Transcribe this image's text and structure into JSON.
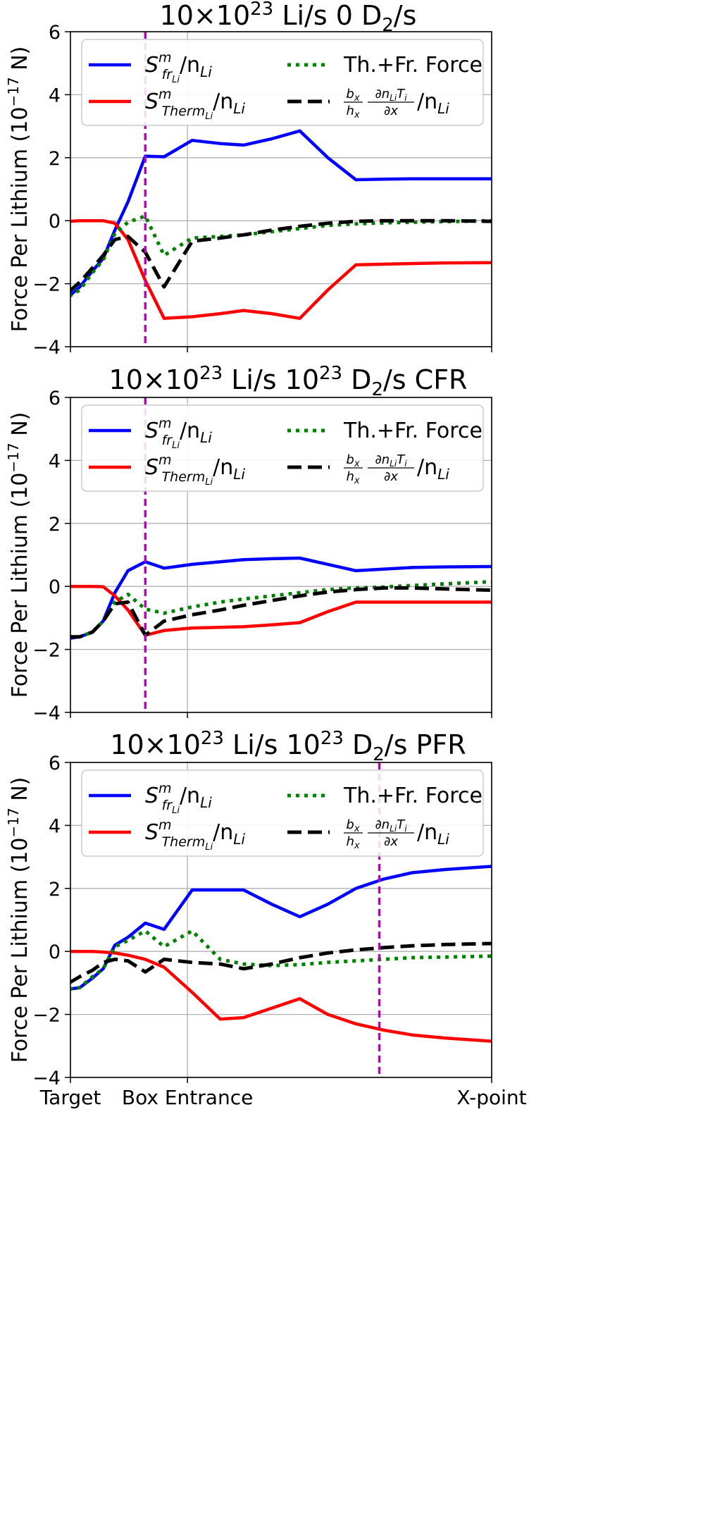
{
  "figure": {
    "ylabel_text": "Force Per Lithium (",
    "ylabel_unit_base": "10",
    "ylabel_unit_exp": "−17",
    "ylabel_unit_suffix": " N)",
    "xtick_labels": [
      "Target",
      "Box Entrance",
      "X-point"
    ]
  },
  "legend": {
    "fric_main": "S",
    "fric_sup": "m",
    "fric_sub": "fr",
    "fric_subsub": "Li",
    "fric_tail": "/n",
    "fric_tail_sub": "Li",
    "therm_main": "S",
    "therm_sup": "m",
    "therm_sub": "Therm",
    "therm_subsub": "Li",
    "therm_tail": "/n",
    "therm_tail_sub": "Li",
    "total_label": "Th.+Fr. Force",
    "grad_num": "b",
    "grad_num_sub": "x",
    "grad_den": "h",
    "grad_den_sub": "x",
    "grad_deriv_num": "∂n",
    "grad_deriv_num_sub": "Li",
    "grad_deriv_num_T": "T",
    "grad_deriv_num_T_sub": "i",
    "grad_deriv_den": "∂x",
    "grad_tail": "/n",
    "grad_tail_sub": "Li"
  },
  "colors": {
    "friction": "#0000ff",
    "thermal": "#ff0000",
    "total": "#008000",
    "gradient": "#000000",
    "xpoint_marker": "#bf00bf",
    "grid": "#b0b0b0"
  },
  "chart_data": [
    {
      "type": "line",
      "title_prefix": "10×10",
      "title_exp": "23",
      "title_mid": " Li/s 0 D",
      "title_sub": "2",
      "title_suffix": "/s",
      "ylim": [
        -4,
        6
      ],
      "yticks": [
        -4,
        -2,
        0,
        2,
        4,
        6
      ],
      "xlim": [
        0,
        9
      ],
      "xticks": [
        0,
        2.5,
        9
      ],
      "grid": true,
      "legend_position": "top",
      "marker_x": 1.6,
      "x": [
        -0.03,
        0.2,
        0.47,
        0.7,
        0.95,
        1.23,
        1.6,
        2.0,
        2.6,
        3.2,
        3.7,
        4.3,
        4.9,
        5.5,
        6.1,
        6.7,
        7.3,
        8.0,
        9.0
      ],
      "series": [
        {
          "key": "friction",
          "values": [
            -2.4,
            -2.1,
            -1.6,
            -1.2,
            -0.3,
            0.6,
            2.05,
            2.03,
            2.55,
            2.45,
            2.4,
            2.6,
            2.85,
            2.0,
            1.3,
            1.32,
            1.33,
            1.33,
            1.33
          ]
        },
        {
          "key": "thermal",
          "values": [
            -0.02,
            0.0,
            0.0,
            0.0,
            -0.08,
            -0.6,
            -1.9,
            -3.1,
            -3.05,
            -2.95,
            -2.85,
            -2.95,
            -3.1,
            -2.2,
            -1.4,
            -1.38,
            -1.36,
            -1.34,
            -1.33
          ]
        },
        {
          "key": "total",
          "values": [
            -2.4,
            -2.2,
            -1.65,
            -1.25,
            -0.4,
            -0.05,
            0.15,
            -1.1,
            -0.55,
            -0.5,
            -0.45,
            -0.35,
            -0.25,
            -0.15,
            -0.1,
            -0.07,
            -0.05,
            -0.03,
            0.0
          ]
        },
        {
          "key": "gradient",
          "values": [
            -2.25,
            -1.95,
            -1.5,
            -1.1,
            -0.6,
            -0.5,
            -1.0,
            -2.1,
            -0.65,
            -0.55,
            -0.45,
            -0.3,
            -0.18,
            -0.08,
            -0.02,
            0.0,
            0.0,
            0.0,
            -0.02
          ]
        }
      ]
    },
    {
      "type": "line",
      "title_prefix": "10×10",
      "title_exp": "23",
      "title_mid": " Li/s 10",
      "title_exp2": "23",
      "title_mid2": " D",
      "title_sub": "2",
      "title_suffix": "/s CFR",
      "ylim": [
        -4,
        6
      ],
      "yticks": [
        -4,
        -2,
        0,
        2,
        4,
        6
      ],
      "xlim": [
        0,
        9
      ],
      "xticks": [
        0,
        2.5,
        9
      ],
      "grid": true,
      "legend_position": "top",
      "marker_x": 1.6,
      "x": [
        -0.03,
        0.2,
        0.47,
        0.7,
        0.95,
        1.23,
        1.6,
        2.0,
        2.6,
        3.2,
        3.7,
        4.3,
        4.9,
        5.5,
        6.1,
        6.7,
        7.3,
        8.0,
        9.0
      ],
      "series": [
        {
          "key": "friction",
          "values": [
            -1.65,
            -1.6,
            -1.45,
            -1.1,
            -0.2,
            0.5,
            0.78,
            0.58,
            0.7,
            0.78,
            0.85,
            0.88,
            0.9,
            0.7,
            0.5,
            0.55,
            0.6,
            0.62,
            0.63
          ]
        },
        {
          "key": "thermal",
          "values": [
            0.0,
            0.0,
            0.0,
            -0.01,
            -0.3,
            -0.75,
            -1.55,
            -1.4,
            -1.32,
            -1.3,
            -1.28,
            -1.22,
            -1.15,
            -0.8,
            -0.5,
            -0.5,
            -0.5,
            -0.5,
            -0.5
          ]
        },
        {
          "key": "total",
          "values": [
            -1.6,
            -1.6,
            -1.45,
            -1.1,
            -0.5,
            -0.25,
            -0.72,
            -0.85,
            -0.65,
            -0.5,
            -0.4,
            -0.3,
            -0.2,
            -0.1,
            -0.05,
            -0.02,
            0.03,
            0.08,
            0.15
          ]
        },
        {
          "key": "gradient",
          "values": [
            -1.6,
            -1.6,
            -1.45,
            -1.1,
            -0.55,
            -0.5,
            -1.55,
            -1.1,
            -0.9,
            -0.75,
            -0.6,
            -0.45,
            -0.3,
            -0.18,
            -0.1,
            -0.05,
            -0.05,
            -0.08,
            -0.12
          ]
        }
      ]
    },
    {
      "type": "line",
      "title_prefix": "10×10",
      "title_exp": "23",
      "title_mid": " Li/s 10",
      "title_exp2": "23",
      "title_mid2": " D",
      "title_sub": "2",
      "title_suffix": "/s PFR",
      "ylim": [
        -4,
        6
      ],
      "yticks": [
        -4,
        -2,
        0,
        2,
        4,
        6
      ],
      "xlim": [
        0,
        9
      ],
      "xticks": [
        0,
        2.5,
        9
      ],
      "grid": true,
      "legend_position": "top",
      "marker_x": 6.6,
      "x": [
        -0.03,
        0.2,
        0.47,
        0.7,
        0.95,
        1.23,
        1.6,
        2.0,
        2.6,
        3.2,
        3.7,
        4.3,
        4.9,
        5.5,
        6.1,
        6.7,
        7.3,
        8.0,
        9.0
      ],
      "series": [
        {
          "key": "friction",
          "values": [
            -1.2,
            -1.15,
            -0.85,
            -0.55,
            0.2,
            0.45,
            0.9,
            0.7,
            1.95,
            1.95,
            1.95,
            1.5,
            1.1,
            1.5,
            2.0,
            2.3,
            2.5,
            2.6,
            2.7
          ]
        },
        {
          "key": "thermal",
          "values": [
            0.0,
            0.0,
            0.0,
            -0.02,
            -0.05,
            -0.12,
            -0.25,
            -0.5,
            -1.3,
            -2.15,
            -2.1,
            -1.8,
            -1.5,
            -2.0,
            -2.3,
            -2.5,
            -2.65,
            -2.75,
            -2.85
          ]
        },
        {
          "key": "total",
          "values": [
            -1.2,
            -1.15,
            -0.8,
            -0.55,
            0.15,
            0.35,
            0.65,
            0.15,
            0.65,
            -0.25,
            -0.4,
            -0.45,
            -0.42,
            -0.35,
            -0.3,
            -0.25,
            -0.2,
            -0.18,
            -0.15
          ]
        },
        {
          "key": "gradient",
          "values": [
            -1.0,
            -0.8,
            -0.6,
            -0.35,
            -0.25,
            -0.3,
            -0.65,
            -0.25,
            -0.35,
            -0.4,
            -0.55,
            -0.4,
            -0.2,
            -0.05,
            0.05,
            0.12,
            0.18,
            0.22,
            0.25
          ]
        }
      ]
    }
  ]
}
